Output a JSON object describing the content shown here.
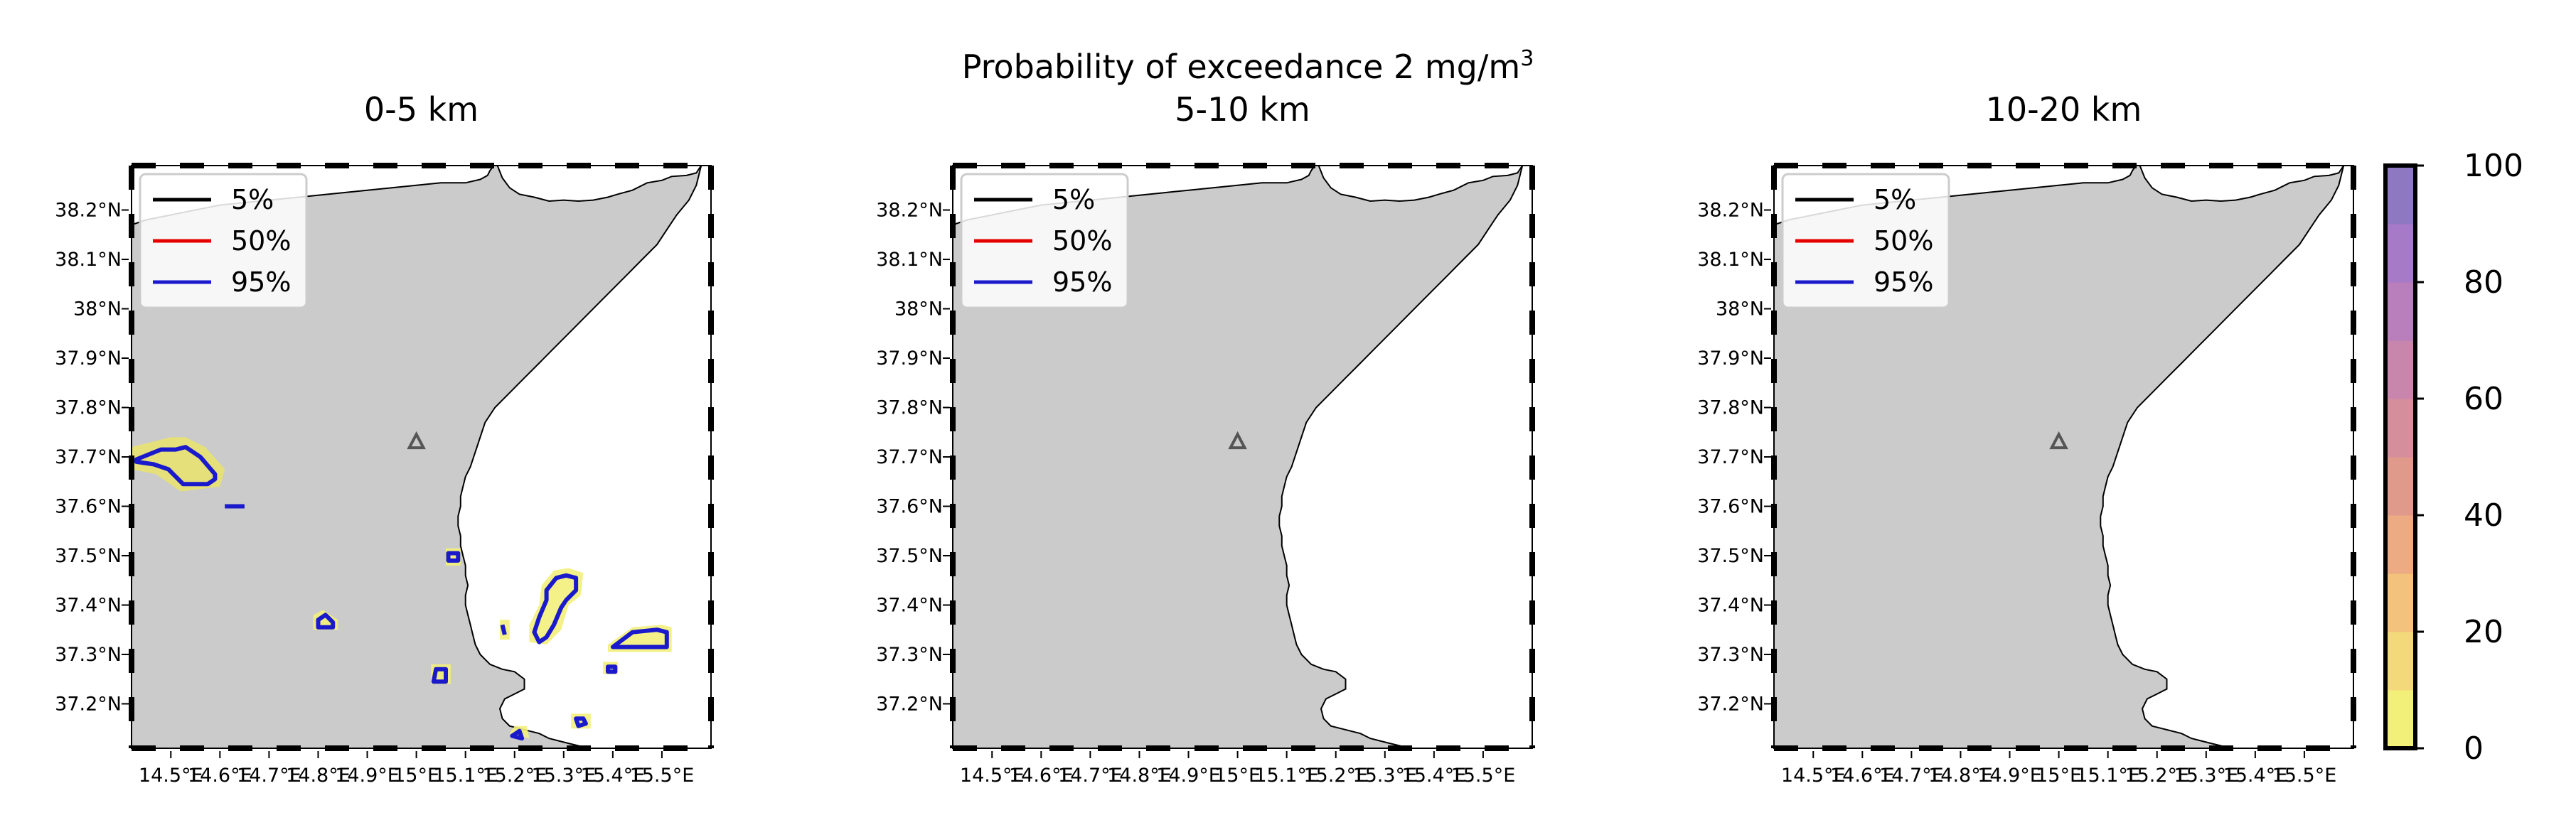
{
  "figure": {
    "suptitle_text": "Probability of exceedance 2 mg/m",
    "suptitle_sup": "3"
  },
  "colors": {
    "land": "#cbcbcb",
    "sea": "#ffffff",
    "c5": "#000000",
    "c50": "#e60000",
    "c95": "#1a1acc",
    "fill_low": "#f2f07a",
    "fill_mid": "#e8e270",
    "vent": "#555555"
  },
  "legend": [
    {
      "label": "5%",
      "color": "#000000"
    },
    {
      "label": "50%",
      "color": "#e60000"
    },
    {
      "label": "95%",
      "color": "#1a1acc"
    }
  ],
  "chart_data": [
    {
      "type": "heatmap",
      "title": "0-5 km",
      "xlim": [
        14.42,
        15.6
      ],
      "ylim": [
        37.11,
        38.29
      ],
      "xticks": [
        14.5,
        14.6,
        14.7,
        14.8,
        14.9,
        15.0,
        15.1,
        15.2,
        15.3,
        15.4,
        15.5
      ],
      "xticklabels": [
        "14.5°E",
        "14.6°E",
        "14.7°E",
        "14.8°E",
        "14.9°E",
        "15°E",
        "15.1°E",
        "15.2°E",
        "15.3°E",
        "15.4°E",
        "15.5°E"
      ],
      "yticks": [
        37.2,
        37.3,
        37.4,
        37.5,
        37.6,
        37.7,
        37.8,
        37.9,
        38.0,
        38.1,
        38.2
      ],
      "yticklabels": [
        "37.2°N",
        "37.3°N",
        "37.4°N",
        "37.5°N",
        "37.6°N",
        "37.7°N",
        "37.8°N",
        "37.9°N",
        "38°N",
        "38.1°N",
        "38.2°N"
      ],
      "vent": {
        "lon": 15.0,
        "lat": 37.73
      },
      "contours_95": [
        [
          [
            14.43,
            37.695
          ],
          [
            14.48,
            37.715
          ],
          [
            14.51,
            37.715
          ],
          [
            14.53,
            37.72
          ],
          [
            14.56,
            37.7
          ],
          [
            14.59,
            37.665
          ],
          [
            14.59,
            37.655
          ],
          [
            14.575,
            37.645
          ],
          [
            14.525,
            37.645
          ],
          [
            14.495,
            37.675
          ],
          [
            14.465,
            37.685
          ],
          [
            14.43,
            37.69
          ]
        ],
        [
          [
            14.8,
            37.37
          ],
          [
            14.815,
            37.38
          ],
          [
            14.83,
            37.365
          ],
          [
            14.83,
            37.355
          ],
          [
            14.8,
            37.355
          ]
        ],
        [
          [
            14.61,
            37.6
          ],
          [
            14.65,
            37.6
          ]
        ],
        [
          [
            15.04,
            37.27
          ],
          [
            15.06,
            37.27
          ],
          [
            15.06,
            37.245
          ],
          [
            15.035,
            37.245
          ]
        ],
        [
          [
            15.065,
            37.505
          ],
          [
            15.085,
            37.505
          ],
          [
            15.085,
            37.49
          ],
          [
            15.065,
            37.49
          ]
        ],
        [
          [
            15.265,
            37.43
          ],
          [
            15.285,
            37.455
          ],
          [
            15.305,
            37.46
          ],
          [
            15.325,
            37.455
          ],
          [
            15.325,
            37.43
          ],
          [
            15.305,
            37.41
          ],
          [
            15.295,
            37.395
          ],
          [
            15.28,
            37.36
          ],
          [
            15.265,
            37.335
          ],
          [
            15.25,
            37.325
          ],
          [
            15.24,
            37.345
          ],
          [
            15.25,
            37.375
          ],
          [
            15.265,
            37.41
          ]
        ],
        [
          [
            15.4,
            37.315
          ],
          [
            15.44,
            37.345
          ],
          [
            15.49,
            37.35
          ],
          [
            15.51,
            37.345
          ],
          [
            15.51,
            37.315
          ]
        ],
        [
          [
            15.39,
            37.275
          ],
          [
            15.405,
            37.275
          ],
          [
            15.405,
            37.265
          ],
          [
            15.39,
            37.265
          ]
        ],
        [
          [
            15.325,
            37.17
          ],
          [
            15.34,
            37.17
          ],
          [
            15.345,
            37.16
          ],
          [
            15.33,
            37.155
          ]
        ],
        [
          [
            15.195,
            37.135
          ],
          [
            15.215,
            37.13
          ],
          [
            15.21,
            37.145
          ]
        ],
        [
          [
            15.175,
            37.36
          ],
          [
            15.18,
            37.34
          ]
        ]
      ],
      "fills": [
        [
          [
            14.42,
            37.72
          ],
          [
            14.5,
            37.74
          ],
          [
            14.53,
            37.74
          ],
          [
            14.57,
            37.72
          ],
          [
            14.61,
            37.675
          ],
          [
            14.6,
            37.64
          ],
          [
            14.52,
            37.63
          ],
          [
            14.47,
            37.665
          ],
          [
            14.42,
            37.675
          ]
        ],
        [
          [
            14.79,
            37.38
          ],
          [
            14.81,
            37.39
          ],
          [
            14.84,
            37.37
          ],
          [
            14.84,
            37.35
          ],
          [
            14.79,
            37.35
          ]
        ],
        [
          [
            15.03,
            37.28
          ],
          [
            15.07,
            37.28
          ],
          [
            15.07,
            37.24
          ],
          [
            15.03,
            37.24
          ]
        ],
        [
          [
            15.06,
            37.515
          ],
          [
            15.09,
            37.515
          ],
          [
            15.09,
            37.48
          ],
          [
            15.06,
            37.48
          ]
        ],
        [
          [
            15.255,
            37.44
          ],
          [
            15.28,
            37.47
          ],
          [
            15.31,
            37.475
          ],
          [
            15.34,
            37.465
          ],
          [
            15.335,
            37.42
          ],
          [
            15.31,
            37.4
          ],
          [
            15.295,
            37.35
          ],
          [
            15.265,
            37.32
          ],
          [
            15.23,
            37.325
          ],
          [
            15.23,
            37.36
          ],
          [
            15.25,
            37.4
          ]
        ],
        [
          [
            15.39,
            37.32
          ],
          [
            15.44,
            37.355
          ],
          [
            15.5,
            37.36
          ],
          [
            15.52,
            37.355
          ],
          [
            15.52,
            37.305
          ],
          [
            15.39,
            37.305
          ]
        ],
        [
          [
            15.38,
            37.285
          ],
          [
            15.41,
            37.285
          ],
          [
            15.41,
            37.26
          ],
          [
            15.38,
            37.26
          ]
        ],
        [
          [
            15.315,
            37.18
          ],
          [
            15.355,
            37.18
          ],
          [
            15.355,
            37.15
          ],
          [
            15.315,
            37.15
          ]
        ],
        [
          [
            15.19,
            37.14
          ],
          [
            15.23,
            37.13
          ],
          [
            15.225,
            37.155
          ],
          [
            15.2,
            37.155
          ]
        ],
        [
          [
            15.17,
            37.37
          ],
          [
            15.19,
            37.37
          ],
          [
            15.19,
            37.33
          ],
          [
            15.17,
            37.33
          ]
        ]
      ]
    },
    {
      "type": "heatmap",
      "title": "5-10 km",
      "xlim": [
        14.42,
        15.6
      ],
      "ylim": [
        37.11,
        38.29
      ],
      "xticks": [
        14.5,
        14.6,
        14.7,
        14.8,
        14.9,
        15.0,
        15.1,
        15.2,
        15.3,
        15.4,
        15.5
      ],
      "xticklabels": [
        "14.5°E",
        "14.6°E",
        "14.7°E",
        "14.8°E",
        "14.9°E",
        "15°E",
        "15.1°E",
        "15.2°E",
        "15.3°E",
        "15.4°E",
        "15.5°E"
      ],
      "yticks": [
        37.2,
        37.3,
        37.4,
        37.5,
        37.6,
        37.7,
        37.8,
        37.9,
        38.0,
        38.1,
        38.2
      ],
      "yticklabels": [
        "37.2°N",
        "37.3°N",
        "37.4°N",
        "37.5°N",
        "37.6°N",
        "37.7°N",
        "37.8°N",
        "37.9°N",
        "38°N",
        "38.1°N",
        "38.2°N"
      ],
      "vent": {
        "lon": 15.0,
        "lat": 37.73
      },
      "contours_95": [],
      "fills": []
    },
    {
      "type": "heatmap",
      "title": "10-20 km",
      "xlim": [
        14.42,
        15.6
      ],
      "ylim": [
        37.11,
        38.29
      ],
      "xticks": [
        14.5,
        14.6,
        14.7,
        14.8,
        14.9,
        15.0,
        15.1,
        15.2,
        15.3,
        15.4,
        15.5
      ],
      "xticklabels": [
        "14.5°E",
        "14.6°E",
        "14.7°E",
        "14.8°E",
        "14.9°E",
        "15°E",
        "15.1°E",
        "15.2°E",
        "15.3°E",
        "15.4°E",
        "15.5°E"
      ],
      "yticks": [
        37.2,
        37.3,
        37.4,
        37.5,
        37.6,
        37.7,
        37.8,
        37.9,
        38.0,
        38.1,
        38.2
      ],
      "yticklabels": [
        "37.2°N",
        "37.3°N",
        "37.4°N",
        "37.5°N",
        "37.6°N",
        "37.7°N",
        "37.8°N",
        "37.9°N",
        "38°N",
        "38.1°N",
        "38.2°N"
      ],
      "vent": {
        "lon": 15.0,
        "lat": 37.73
      },
      "contours_95": [],
      "fills": []
    }
  ],
  "coastline": [
    [
      14.42,
      38.17
    ],
    [
      14.45,
      38.18
    ],
    [
      14.5,
      38.19
    ],
    [
      14.55,
      38.2
    ],
    [
      14.6,
      38.21
    ],
    [
      14.65,
      38.215
    ],
    [
      14.7,
      38.22
    ],
    [
      14.75,
      38.225
    ],
    [
      14.8,
      38.23
    ],
    [
      14.85,
      38.235
    ],
    [
      14.9,
      38.24
    ],
    [
      14.95,
      38.245
    ],
    [
      15.0,
      38.25
    ],
    [
      15.05,
      38.255
    ],
    [
      15.1,
      38.255
    ],
    [
      15.13,
      38.262
    ],
    [
      15.145,
      38.27
    ],
    [
      15.15,
      38.28
    ],
    [
      15.158,
      38.29
    ]
  ],
  "coastline_east": [
    [
      15.165,
      38.29
    ],
    [
      15.175,
      38.265
    ],
    [
      15.19,
      38.245
    ],
    [
      15.21,
      38.232
    ],
    [
      15.24,
      38.226
    ],
    [
      15.27,
      38.218
    ],
    [
      15.3,
      38.22
    ],
    [
      15.33,
      38.218
    ],
    [
      15.36,
      38.22
    ],
    [
      15.39,
      38.226
    ],
    [
      15.41,
      38.232
    ],
    [
      15.44,
      38.24
    ],
    [
      15.47,
      38.255
    ],
    [
      15.5,
      38.26
    ],
    [
      15.52,
      38.268
    ],
    [
      15.55,
      38.27
    ],
    [
      15.57,
      38.275
    ],
    [
      15.58,
      38.29
    ]
  ],
  "coastline_shore": [
    [
      15.58,
      38.29
    ],
    [
      15.57,
      38.25
    ],
    [
      15.555,
      38.22
    ],
    [
      15.53,
      38.19
    ],
    [
      15.51,
      38.16
    ],
    [
      15.49,
      38.13
    ],
    [
      15.46,
      38.1
    ],
    [
      15.43,
      38.07
    ],
    [
      15.4,
      38.04
    ],
    [
      15.37,
      38.01
    ],
    [
      15.34,
      37.98
    ],
    [
      15.31,
      37.95
    ],
    [
      15.28,
      37.92
    ],
    [
      15.25,
      37.89
    ],
    [
      15.22,
      37.86
    ],
    [
      15.19,
      37.83
    ],
    [
      15.16,
      37.8
    ],
    [
      15.14,
      37.77
    ],
    [
      15.13,
      37.74
    ],
    [
      15.12,
      37.71
    ],
    [
      15.11,
      37.68
    ],
    [
      15.1,
      37.66
    ],
    [
      15.095,
      37.64
    ],
    [
      15.09,
      37.62
    ],
    [
      15.09,
      37.6
    ],
    [
      15.085,
      37.58
    ],
    [
      15.085,
      37.56
    ],
    [
      15.09,
      37.54
    ],
    [
      15.09,
      37.52
    ],
    [
      15.095,
      37.5
    ],
    [
      15.1,
      37.48
    ],
    [
      15.1,
      37.46
    ],
    [
      15.105,
      37.44
    ],
    [
      15.1,
      37.42
    ],
    [
      15.1,
      37.4
    ],
    [
      15.105,
      37.38
    ],
    [
      15.11,
      37.36
    ],
    [
      15.115,
      37.34
    ],
    [
      15.12,
      37.32
    ],
    [
      15.13,
      37.3
    ],
    [
      15.15,
      37.28
    ],
    [
      15.175,
      37.27
    ],
    [
      15.2,
      37.265
    ],
    [
      15.22,
      37.25
    ],
    [
      15.22,
      37.23
    ],
    [
      15.2,
      37.22
    ],
    [
      15.18,
      37.21
    ],
    [
      15.17,
      37.19
    ],
    [
      15.175,
      37.17
    ],
    [
      15.19,
      37.155
    ],
    [
      15.21,
      37.15
    ],
    [
      15.23,
      37.145
    ],
    [
      15.25,
      37.14
    ],
    [
      15.27,
      37.13
    ],
    [
      15.29,
      37.125
    ],
    [
      15.31,
      37.12
    ],
    [
      15.33,
      37.115
    ],
    [
      15.35,
      37.11
    ]
  ],
  "colorbar": {
    "ticks": [
      "0",
      "20",
      "40",
      "60",
      "80",
      "100"
    ],
    "levels": [
      0,
      10,
      20,
      30,
      40,
      50,
      60,
      70,
      80,
      90,
      100
    ],
    "colors": [
      "#f3f07a",
      "#f4d97b",
      "#f3c27c",
      "#ecab82",
      "#e09a8c",
      "#d58e9b",
      "#c886ac",
      "#b97fbc",
      "#a67ac6",
      "#8f78c2"
    ]
  }
}
